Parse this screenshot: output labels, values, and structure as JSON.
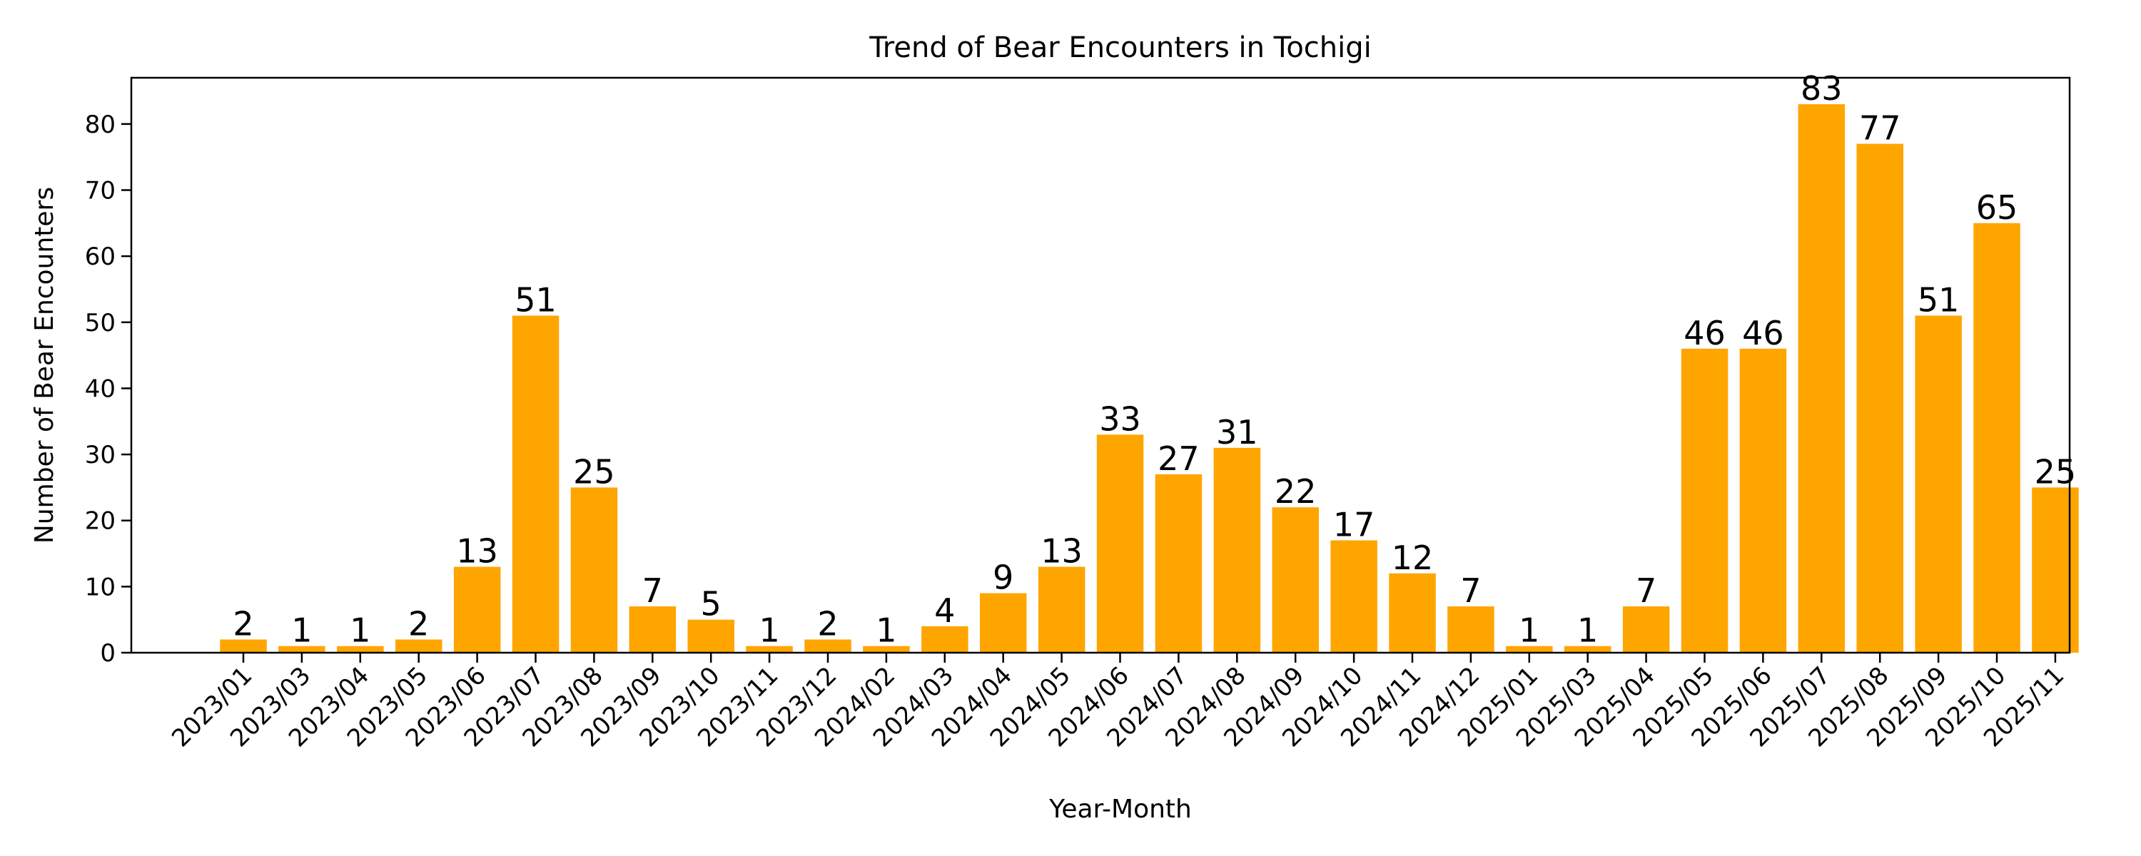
{
  "chart_data": {
    "type": "bar",
    "title": "Trend of Bear Encounters in Tochigi",
    "xlabel": "Year-Month",
    "ylabel": "Number of Bear Encounters",
    "ylim": [
      0,
      87
    ],
    "yticks": [
      0,
      10,
      20,
      30,
      40,
      50,
      60,
      70,
      80
    ],
    "grid": false,
    "legend": null,
    "bar_color": "#FFA500",
    "categories": [
      "2023/01",
      "2023/03",
      "2023/04",
      "2023/05",
      "2023/06",
      "2023/07",
      "2023/08",
      "2023/09",
      "2023/10",
      "2023/11",
      "2023/12",
      "2024/02",
      "2024/03",
      "2024/04",
      "2024/05",
      "2024/06",
      "2024/07",
      "2024/08",
      "2024/09",
      "2024/10",
      "2024/11",
      "2024/12",
      "2025/01",
      "2025/03",
      "2025/04",
      "2025/05",
      "2025/06",
      "2025/07",
      "2025/08",
      "2025/09",
      "2025/10",
      "2025/11"
    ],
    "values": [
      2,
      1,
      1,
      2,
      13,
      51,
      25,
      7,
      5,
      1,
      2,
      1,
      4,
      9,
      13,
      33,
      27,
      31,
      22,
      17,
      12,
      7,
      1,
      1,
      7,
      46,
      46,
      83,
      77,
      51,
      65,
      25
    ],
    "data_labels_shown": true
  }
}
